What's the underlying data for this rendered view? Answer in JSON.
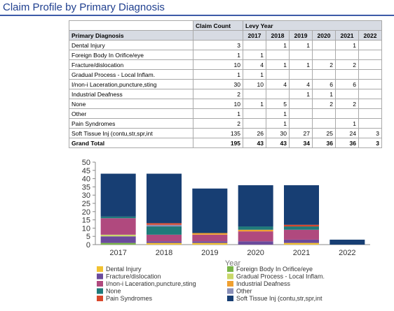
{
  "title": "Claim Profile by Primary Diagnosis",
  "table": {
    "col_group": "Levy Year",
    "col_measure": "Claim Count",
    "row_header": "Primary Diagnosis",
    "years": [
      "2017",
      "2018",
      "2019",
      "2020",
      "2021",
      "2022"
    ],
    "rows": [
      {
        "label": "Dental Injury",
        "count": "3",
        "cells": [
          "",
          "1",
          "1",
          "",
          "1",
          ""
        ]
      },
      {
        "label": "Foreign Body In Orifice/eye",
        "count": "1",
        "cells": [
          "1",
          "",
          "",
          "",
          "",
          ""
        ]
      },
      {
        "label": "Fracture/dislocation",
        "count": "10",
        "cells": [
          "4",
          "1",
          "1",
          "2",
          "2",
          ""
        ]
      },
      {
        "label": "Gradual Process - Local Inflam.",
        "count": "1",
        "cells": [
          "1",
          "",
          "",
          "",
          "",
          ""
        ]
      },
      {
        "label": "I/non-i Laceration,puncture,sting",
        "count": "30",
        "cells": [
          "10",
          "4",
          "4",
          "6",
          "6",
          ""
        ]
      },
      {
        "label": "Industrial Deafness",
        "count": "2",
        "cells": [
          "",
          "",
          "1",
          "1",
          "",
          ""
        ]
      },
      {
        "label": "None",
        "count": "10",
        "cells": [
          "1",
          "5",
          "",
          "2",
          "2",
          ""
        ]
      },
      {
        "label": "Other",
        "count": "1",
        "cells": [
          "",
          "1",
          "",
          "",
          "",
          ""
        ]
      },
      {
        "label": "Pain Syndromes",
        "count": "2",
        "cells": [
          "",
          "1",
          "",
          "",
          "1",
          ""
        ]
      },
      {
        "label": "Soft Tissue Inj (contu,str,spr,int",
        "count": "135",
        "cells": [
          "26",
          "30",
          "27",
          "25",
          "24",
          "3"
        ]
      }
    ],
    "total": {
      "label": "Grand Total",
      "count": "195",
      "cells": [
        "43",
        "43",
        "34",
        "36",
        "36",
        "3"
      ]
    }
  },
  "chart_data": {
    "type": "bar",
    "stacked": true,
    "categories": [
      "2017",
      "2018",
      "2019",
      "2020",
      "2021",
      "2022"
    ],
    "xlabel": "Year",
    "ylabel": "",
    "ylim": [
      0,
      50
    ],
    "yticks": [
      0,
      5,
      10,
      15,
      20,
      25,
      30,
      35,
      40,
      45,
      50
    ],
    "legend_position": "bottom",
    "series": [
      {
        "name": "Dental Injury",
        "color": "#f2c230",
        "values": [
          0,
          1,
          1,
          0,
          1,
          0
        ]
      },
      {
        "name": "Foreign Body In Orifice/eye",
        "color": "#7ab648",
        "values": [
          1,
          0,
          0,
          0,
          0,
          0
        ]
      },
      {
        "name": "Fracture/dislocation",
        "color": "#6a4a9c",
        "values": [
          4,
          1,
          1,
          2,
          2,
          0
        ]
      },
      {
        "name": "Gradual Process - Local Inflam.",
        "color": "#c9d86a",
        "values": [
          1,
          0,
          0,
          0,
          0,
          0
        ]
      },
      {
        "name": "I/non-i Laceration,puncture,sting",
        "color": "#b0497e",
        "values": [
          10,
          4,
          4,
          6,
          6,
          0
        ]
      },
      {
        "name": "Industrial Deafness",
        "color": "#f0a030",
        "values": [
          0,
          0,
          1,
          1,
          0,
          0
        ]
      },
      {
        "name": "None",
        "color": "#1f7a7a",
        "values": [
          1,
          5,
          0,
          2,
          2,
          0
        ]
      },
      {
        "name": "Other",
        "color": "#8a8fb8",
        "values": [
          0,
          1,
          0,
          0,
          0,
          0
        ]
      },
      {
        "name": "Pain Syndromes",
        "color": "#d9472b",
        "values": [
          0,
          1,
          0,
          0,
          1,
          0
        ]
      },
      {
        "name": "Soft Tissue Inj (contu,str,spr,int",
        "color": "#173e73",
        "values": [
          26,
          30,
          27,
          25,
          24,
          3
        ]
      }
    ],
    "legend_order": [
      "Dental Injury",
      "Foreign Body In Orifice/eye",
      "Fracture/dislocation",
      "Gradual Process - Local Inflam.",
      "I/non-i Laceration,puncture,sting",
      "Industrial Deafness",
      "None",
      "Other",
      "Pain Syndromes",
      "Soft Tissue Inj (contu,str,spr,int"
    ]
  }
}
